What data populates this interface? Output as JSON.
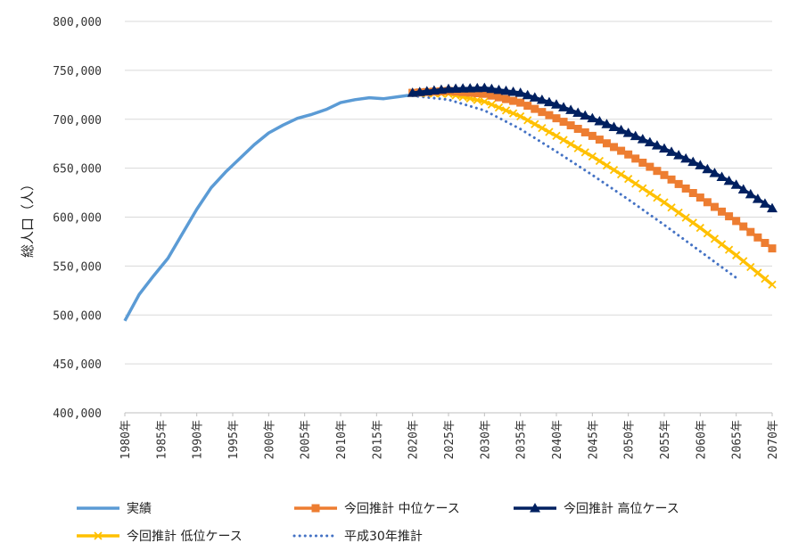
{
  "chart_data": {
    "type": "line",
    "ylabel": "総人口（人）",
    "xlabel": "",
    "title": "",
    "ylim": [
      400000,
      800000
    ],
    "y_ticks": [
      400000,
      450000,
      500000,
      550000,
      600000,
      650000,
      700000,
      750000,
      800000
    ],
    "y_tick_labels": [
      "400,000",
      "450,000",
      "500,000",
      "550,000",
      "600,000",
      "650,000",
      "700,000",
      "750,000",
      "800,000"
    ],
    "xlim": [
      1980,
      2070
    ],
    "x_tick_labels": [
      "1980年",
      "1985年",
      "1990年",
      "1995年",
      "2000年",
      "2005年",
      "2010年",
      "2015年",
      "2020年",
      "2025年",
      "2030年",
      "2035年",
      "2040年",
      "2045年",
      "2050年",
      "2055年",
      "2060年",
      "2065年",
      "2070年"
    ],
    "grid": true,
    "legend_position": "bottom",
    "series": [
      {
        "name": "実績",
        "style": "solid",
        "marker": "none",
        "color": "#5B9BD5",
        "x": [
          1980,
          1982,
          1984,
          1986,
          1988,
          1990,
          1992,
          1994,
          1996,
          1998,
          2000,
          2002,
          2004,
          2006,
          2008,
          2010,
          2012,
          2014,
          2016,
          2018,
          2020
        ],
        "y": [
          494000,
          521000,
          540000,
          558000,
          583000,
          608000,
          630000,
          646000,
          660000,
          674000,
          686000,
          694000,
          701000,
          705000,
          710000,
          717000,
          720000,
          722000,
          721000,
          723000,
          725000
        ]
      },
      {
        "name": "今回推計 中位ケース",
        "style": "solid",
        "marker": "square",
        "color": "#ED7D31",
        "x": [
          2020,
          2025,
          2030,
          2035,
          2040,
          2045,
          2050,
          2055,
          2060,
          2065,
          2070
        ],
        "y": [
          727000,
          729000,
          726000,
          717000,
          701000,
          683000,
          664000,
          643000,
          620000,
          596000,
          568000
        ]
      },
      {
        "name": "今回推計 高位ケース",
        "style": "solid",
        "marker": "triangle",
        "color": "#002060",
        "x": [
          2020,
          2025,
          2030,
          2035,
          2040,
          2045,
          2050,
          2055,
          2060,
          2065,
          2070
        ],
        "y": [
          727000,
          731000,
          732000,
          727000,
          715000,
          701000,
          686000,
          670000,
          653000,
          633000,
          609000
        ]
      },
      {
        "name": "今回推計 低位ケース",
        "style": "solid",
        "marker": "x",
        "color": "#FFC000",
        "x": [
          2020,
          2025,
          2030,
          2035,
          2040,
          2045,
          2050,
          2055,
          2060,
          2065,
          2070
        ],
        "y": [
          727000,
          726000,
          718000,
          703000,
          683000,
          662000,
          639000,
          615000,
          589000,
          561000,
          531000
        ]
      },
      {
        "name": "平成30年推計",
        "style": "dotted",
        "marker": "none",
        "color": "#4472C4",
        "x": [
          2020,
          2025,
          2030,
          2035,
          2040,
          2045,
          2050,
          2055,
          2060,
          2065
        ],
        "y": [
          724000,
          720000,
          709000,
          690000,
          667000,
          643000,
          618000,
          592000,
          565000,
          538000
        ]
      }
    ]
  }
}
